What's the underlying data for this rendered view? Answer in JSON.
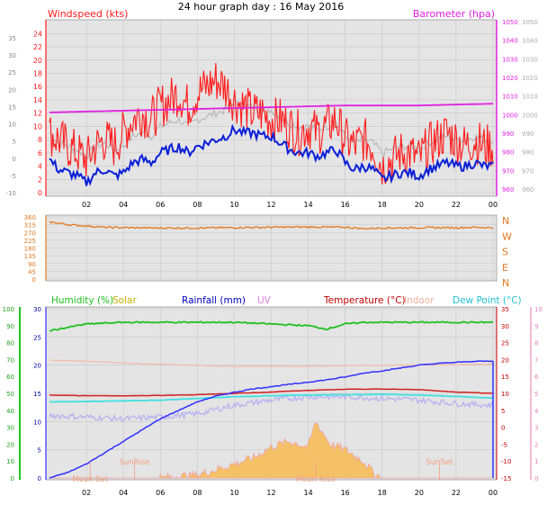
{
  "title": "24 hour graph day : 16 May 2016",
  "colors": {
    "wind_avg": "#0a1fd8",
    "wind_gust": "#ff1a1a",
    "wind_grey": "#b8b8b8",
    "baro": "#e020e0",
    "dir": "#e07820",
    "humidity": "#20c020",
    "solar": "#f5c060",
    "solar_edge": "#f0a0a0",
    "rainfall": "#3030ff",
    "uv": "#c080c0",
    "temp": "#d02020",
    "indoor": "#f0c0b0",
    "dewpoint": "#40e0e0",
    "grid": "#c8c8c8",
    "panel": "#e4e4e4"
  },
  "chart_data": [
    {
      "type": "line",
      "panel": "wind",
      "left_label": "Windspeed (kts)",
      "right_label": "Barometer (hpa)",
      "x_ticks": [
        "02",
        "04",
        "06",
        "08",
        "10",
        "12",
        "14",
        "16",
        "18",
        "20",
        "22",
        "00"
      ],
      "left_ticks_inner": [
        "24",
        "22",
        "20",
        "18",
        "16",
        "14",
        "12",
        "10",
        "8",
        "6",
        "4",
        "2",
        "0"
      ],
      "left_ticks_outer": [
        "35",
        "30",
        "25",
        "20",
        "15",
        "10",
        "5",
        "0",
        "-5",
        "-10"
      ],
      "right_ticks_outer": [
        "1050",
        "1040",
        "1030",
        "1020",
        "1010",
        "1000",
        "990",
        "980",
        "970",
        "960"
      ],
      "right_ticks_inner": [
        "1050",
        "1040",
        "1030",
        "1020",
        "1010",
        "1000",
        "990",
        "980",
        "970",
        "960"
      ],
      "ylim": [
        0,
        25
      ],
      "baro_ylim": [
        955,
        1050
      ],
      "series": [
        {
          "name": "Windspeed (kts)",
          "role": "average",
          "x": [
            0,
            0.5,
            1,
            1.5,
            2,
            2.5,
            3,
            3.5,
            4,
            4.5,
            5,
            5.5,
            6,
            6.5,
            7,
            7.5,
            8,
            8.5,
            9,
            9.5,
            10,
            10.5,
            11,
            11.5,
            12,
            12.5,
            13,
            13.5,
            14,
            14.5,
            15,
            15.5,
            16,
            16.5,
            17,
            17.5,
            18,
            18.5,
            19,
            19.5,
            20,
            20.5,
            21,
            21.5,
            22,
            22.5,
            23,
            23.5,
            24
          ],
          "values": [
            5,
            3.5,
            3,
            2.5,
            1.5,
            3,
            3.5,
            2.5,
            3,
            4.5,
            5,
            4.5,
            6,
            6.5,
            7,
            6,
            7,
            7.5,
            8,
            8.5,
            9.5,
            9,
            9,
            8.5,
            8.5,
            7.5,
            6.5,
            6,
            6,
            5.5,
            6,
            6.5,
            4.5,
            3.5,
            4,
            3.5,
            2,
            2.5,
            3,
            3,
            2.5,
            3.5,
            4,
            4.5,
            4,
            4,
            4.5,
            4,
            4
          ]
        },
        {
          "name": "Wind gust",
          "role": "gust",
          "x": [
            0,
            0.5,
            1,
            1.5,
            2,
            2.5,
            3,
            3.5,
            4,
            4.5,
            5,
            5.5,
            6,
            6.5,
            7,
            7.5,
            8,
            8.5,
            9,
            9.5,
            10,
            10.5,
            11,
            11.5,
            12,
            12.5,
            13,
            13.5,
            14,
            14.5,
            15,
            15.5,
            16,
            16.5,
            17,
            17.5,
            18,
            18.5,
            19,
            19.5,
            20,
            20.5,
            21,
            21.5,
            22,
            22.5,
            23,
            23.5,
            24
          ],
          "values": [
            9,
            8,
            7,
            6,
            5,
            7,
            8,
            7,
            9,
            11,
            12,
            11,
            13,
            14,
            15,
            13,
            15,
            16,
            17,
            16,
            14,
            13,
            12,
            12,
            11,
            11,
            10,
            9,
            10,
            9,
            10,
            11,
            8,
            7,
            8,
            7,
            4,
            5,
            6,
            6,
            5,
            7,
            8,
            9,
            8,
            7,
            8,
            7,
            7
          ]
        },
        {
          "name": "Barometer (hpa)",
          "role": "baro",
          "x": [
            0,
            4,
            8,
            12,
            16,
            20,
            24
          ],
          "values": [
            1001,
            1002,
            1003,
            1004,
            1005,
            1005,
            1006
          ]
        }
      ]
    },
    {
      "type": "line",
      "panel": "direction",
      "left_ticks": [
        "360",
        "315",
        "270",
        "225",
        "180",
        "135",
        "90",
        "45",
        "0"
      ],
      "right_letters": [
        "N",
        "W",
        "S",
        "E",
        "N"
      ],
      "ylim": [
        0,
        360
      ],
      "series": [
        {
          "name": "Wind direction",
          "x": [
            0,
            0.5,
            1,
            2,
            3,
            4,
            6,
            8,
            10,
            12,
            14,
            16,
            17,
            18,
            20,
            22,
            23,
            24
          ],
          "values": [
            330,
            325,
            315,
            308,
            300,
            298,
            296,
            296,
            298,
            300,
            302,
            300,
            292,
            296,
            298,
            298,
            300,
            298
          ]
        }
      ]
    },
    {
      "type": "line",
      "panel": "weather",
      "labels": [
        "Humidity (%)",
        "Solar",
        "Rainfall (mm)",
        "UV",
        "Temperature (°C)",
        "Indoor",
        "Dew Point (°C)"
      ],
      "humidity_ticks": [
        "100",
        "90",
        "80",
        "70",
        "60",
        "50",
        "40",
        "30",
        "20",
        "10",
        "0"
      ],
      "rain_ticks": [
        "30",
        "25",
        "20",
        "15",
        "10",
        "5",
        "0"
      ],
      "temp_ticks": [
        "35",
        "30",
        "25",
        "20",
        "15",
        "10",
        "5",
        "0",
        "-5",
        "-10",
        "-15"
      ],
      "uv_ticks": [
        "10",
        "9",
        "8",
        "7",
        "6",
        "5",
        "4",
        "3",
        "2",
        "1",
        "0"
      ],
      "annotations": [
        "SunRise",
        "SunSet",
        "Moon Set",
        "Moon Rise"
      ],
      "series": [
        {
          "name": "Humidity (%)",
          "x": [
            0,
            0.5,
            1,
            2,
            4,
            6,
            8,
            10,
            12,
            14,
            15,
            16,
            17,
            18,
            20,
            22,
            24
          ],
          "values": [
            87,
            88,
            89,
            91,
            92,
            92,
            92,
            92,
            91,
            90,
            88,
            91,
            92,
            92,
            92,
            92,
            92
          ]
        },
        {
          "name": "Rainfall (mm)",
          "x": [
            0,
            1,
            2,
            3,
            4,
            5,
            6,
            7,
            8,
            9,
            10,
            11,
            12,
            13,
            14,
            15,
            16,
            17,
            18,
            19,
            20,
            21,
            22,
            23,
            24
          ],
          "values": [
            0,
            1,
            2.5,
            4.5,
            6.5,
            8.5,
            10.5,
            12,
            13.5,
            14.5,
            15.2,
            15.8,
            16.2,
            16.6,
            17,
            17.4,
            17.9,
            18.6,
            19,
            19.5,
            20,
            20.3,
            20.5,
            20.7,
            20.7
          ]
        },
        {
          "name": "Temperature (°C)",
          "x": [
            0,
            2,
            4,
            6,
            8,
            10,
            12,
            14,
            16,
            18,
            20,
            22,
            24
          ],
          "values": [
            9.5,
            9.3,
            9.3,
            9.4,
            9.6,
            10,
            10.4,
            10.9,
            11.2,
            11.3,
            11.1,
            10.4,
            10
          ]
        },
        {
          "name": "Indoor",
          "x": [
            0,
            2,
            4,
            6,
            8,
            10,
            12,
            14,
            16,
            18,
            20,
            22,
            24
          ],
          "values": [
            19.8,
            19.5,
            19,
            18.6,
            18.3,
            18,
            18,
            18,
            18.2,
            18.3,
            18.4,
            18.5,
            18.6
          ]
        },
        {
          "name": "Dew Point (°C)",
          "x": [
            0,
            2,
            4,
            6,
            8,
            10,
            12,
            14,
            16,
            18,
            20,
            22,
            24
          ],
          "values": [
            7.5,
            7.6,
            7.8,
            8,
            8.5,
            9,
            9.3,
            9.5,
            9.6,
            9.7,
            9.5,
            9.1,
            8.6
          ]
        },
        {
          "name": "UV",
          "x": [
            0,
            2,
            4,
            6,
            8,
            10,
            12,
            14,
            16,
            18,
            20,
            22,
            24
          ],
          "values": [
            3.7,
            3.6,
            3.5,
            3.6,
            3.8,
            4.3,
            4.6,
            4.8,
            4.8,
            4.7,
            4.6,
            4.4,
            4.3
          ]
        },
        {
          "name": "Solar",
          "x": [
            0,
            5,
            6,
            7,
            8,
            9,
            10,
            11,
            12,
            13,
            14,
            14.4,
            14.8,
            15.2,
            16,
            17,
            17.5,
            18,
            24
          ],
          "values": [
            0,
            0,
            0,
            0.3,
            0.5,
            1.5,
            2.5,
            3.5,
            5.5,
            6.5,
            5.5,
            10,
            8,
            6,
            5,
            3,
            1,
            0,
            0
          ]
        }
      ]
    }
  ]
}
